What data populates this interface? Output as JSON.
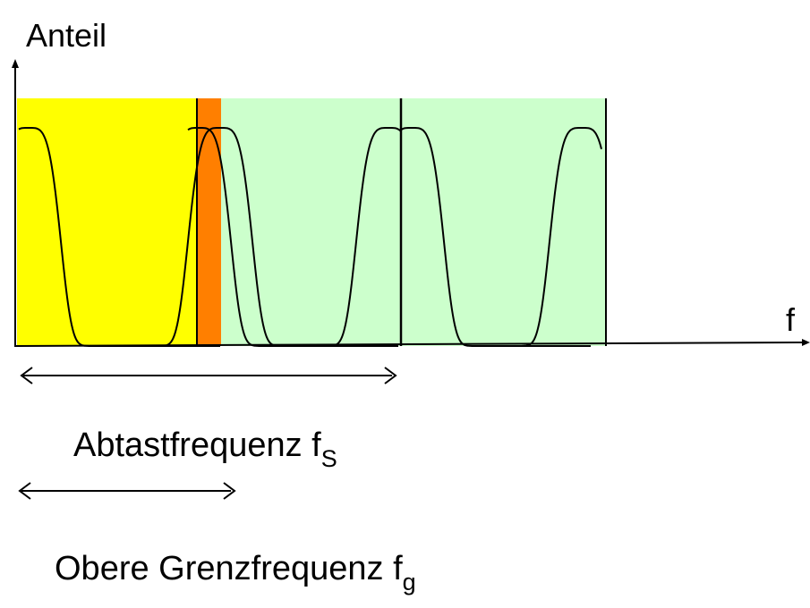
{
  "labels": {
    "y_axis": "Anteil",
    "x_axis": "f",
    "sampling_label": "Abtastfrequenz f",
    "sampling_subscript": "S",
    "cutoff_label": "Obere Grenzfrequenz f",
    "cutoff_subscript": "g"
  },
  "colors": {
    "baseband_band": "#ffff00",
    "overlap_band": "#ff7f00",
    "alias_band": "#ccffcc",
    "lines": "#000000"
  }
}
